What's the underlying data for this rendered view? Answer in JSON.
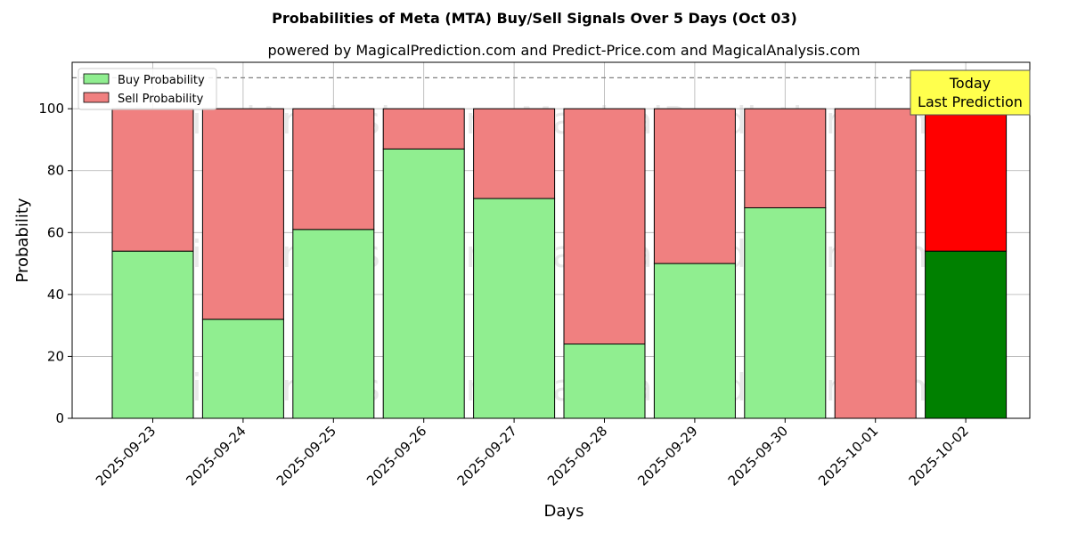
{
  "chart_data": {
    "type": "bar",
    "stacked": true,
    "title": "Probabilities of Meta (MTA) Buy/Sell Signals Over 5 Days (Oct 03)",
    "subtitle": "powered by MagicalPrediction.com and Predict-Price.com and MagicalAnalysis.com",
    "xlabel": "Days",
    "ylabel": "Probability",
    "ylim": [
      0,
      115
    ],
    "yticks": [
      0,
      20,
      40,
      60,
      80,
      100
    ],
    "reference_line": 110,
    "grid": true,
    "legend_position": "top-left",
    "categories": [
      "2025-09-23",
      "2025-09-24",
      "2025-09-25",
      "2025-09-26",
      "2025-09-27",
      "2025-09-28",
      "2025-09-29",
      "2025-09-30",
      "2025-10-01",
      "2025-10-02"
    ],
    "series": [
      {
        "name": "Buy Probability",
        "values": [
          54,
          32,
          61,
          87,
          71,
          24,
          50,
          68,
          0,
          54
        ],
        "color": "#90ee90",
        "highlight_color": "#008000"
      },
      {
        "name": "Sell Probability",
        "values": [
          46,
          68,
          39,
          13,
          29,
          76,
          50,
          32,
          100,
          46
        ],
        "color": "#f08080",
        "highlight_color": "#ff0000"
      }
    ],
    "highlight_index": 9,
    "annotation": {
      "lines": [
        "Today",
        "Last Prediction"
      ],
      "background": "#ffff4d"
    },
    "watermarks": [
      "MagicalAnalysis.com",
      "MagicalPrediction.com"
    ]
  }
}
